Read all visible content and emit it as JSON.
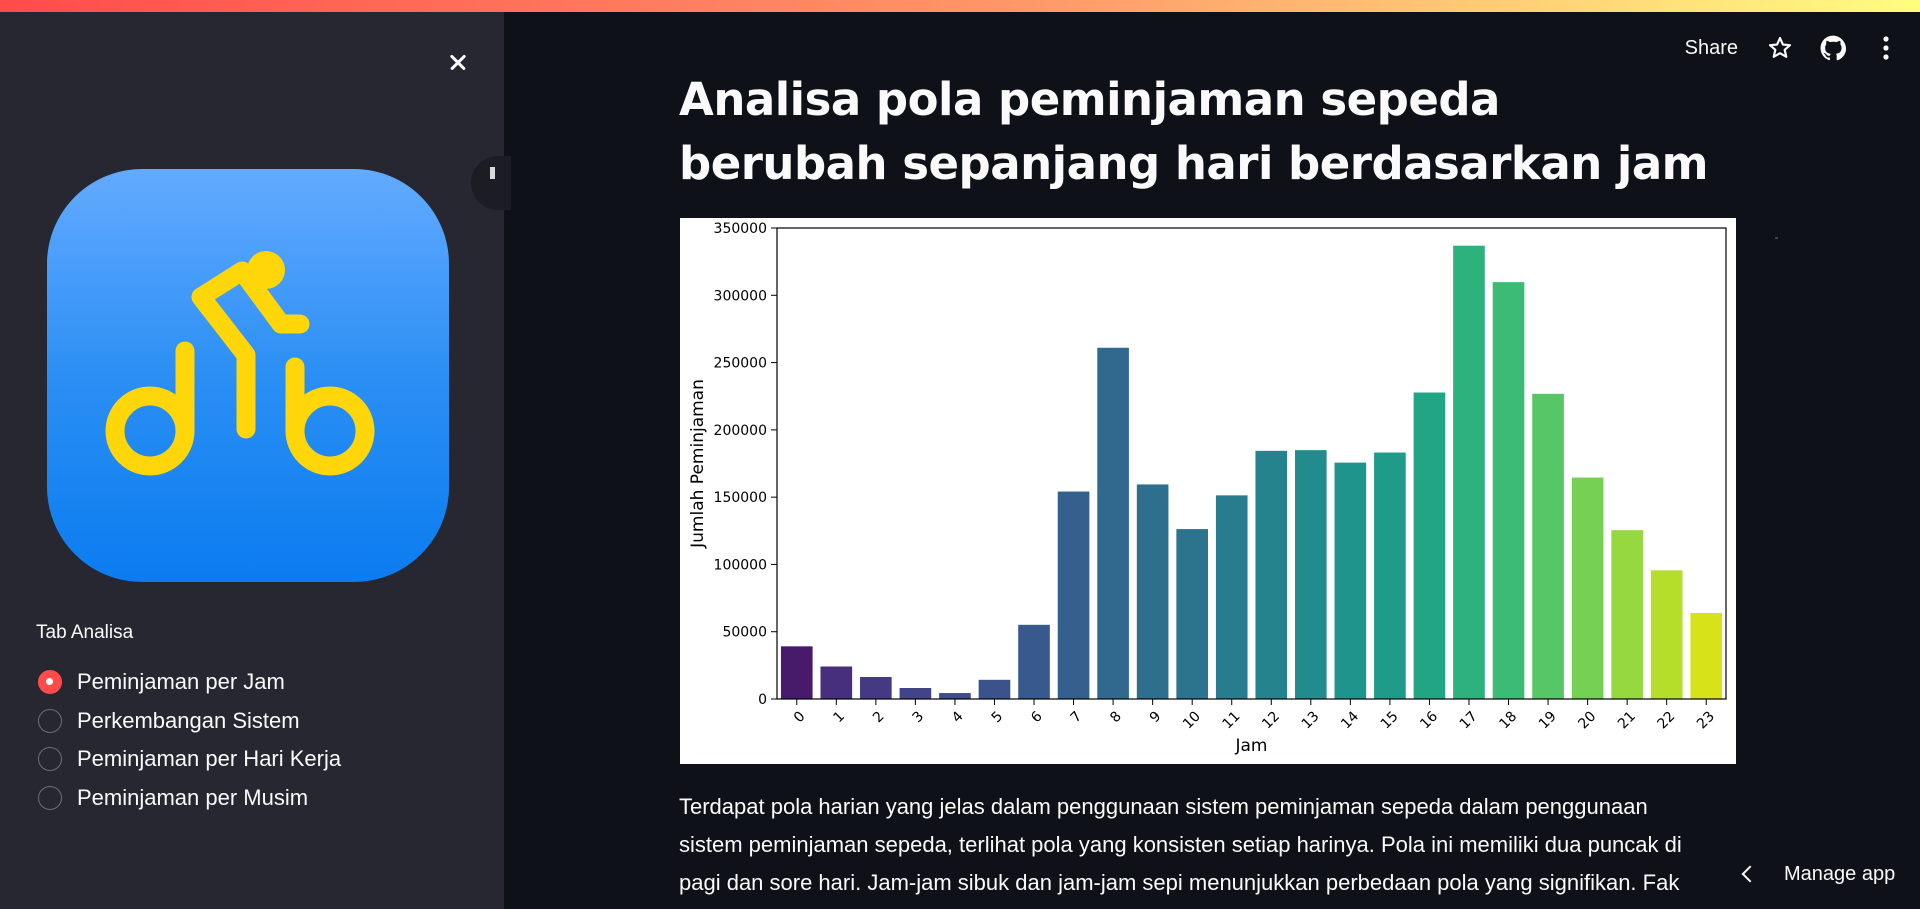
{
  "sidebar": {
    "close_icon": "close-icon",
    "logo_icon": "bicycle-icon",
    "tab_label": "Tab Analisa",
    "options": [
      {
        "label": "Peminjaman per Jam",
        "checked": true
      },
      {
        "label": "Perkembangan Sistem",
        "checked": false
      },
      {
        "label": "Peminjaman per Hari Kerja",
        "checked": false
      },
      {
        "label": "Peminjaman per Musim",
        "checked": false
      }
    ]
  },
  "header": {
    "share_label": "Share",
    "icons": [
      "star-icon",
      "github-icon",
      "more-vert-icon"
    ]
  },
  "main": {
    "title": "Analisa pola peminjaman sepeda berubah sepanjang hari berdasarkan jam",
    "description": "Terdapat pola harian yang jelas dalam penggunaan sistem peminjaman sepeda dalam penggunaan sistem peminjaman sepeda, terlihat pola yang konsisten setiap harinya. Pola ini memiliki dua puncak di pagi dan sore hari. Jam-jam sibuk dan jam-jam sepi menunjukkan perbedaan pola yang signifikan. Fak"
  },
  "footer": {
    "manage_label": "Manage app"
  },
  "colors": {
    "accent": "#ff4b4b",
    "sidebar_bg": "#262730",
    "main_bg": "#0e1117",
    "logo_top": "#63aaff",
    "logo_bottom": "#0b7cf0",
    "logo_glyph": "#ffd60a"
  },
  "chart_data": {
    "type": "bar",
    "palette": "viridis",
    "categories": [
      "0",
      "1",
      "2",
      "3",
      "4",
      "5",
      "6",
      "7",
      "8",
      "9",
      "10",
      "11",
      "12",
      "13",
      "14",
      "15",
      "16",
      "17",
      "18",
      "19",
      "20",
      "21",
      "22",
      "23"
    ],
    "values": [
      39130,
      24164,
      16352,
      8174,
      4428,
      14261,
      55132,
      154171,
      261001,
      159438,
      126257,
      151320,
      184414,
      184919,
      175652,
      183149,
      227748,
      336860,
      309772,
      226789,
      164550,
      125445,
      95612,
      63941
    ],
    "xlabel": "Jam",
    "ylabel": "Jumlah Peminjaman",
    "ylim": [
      0,
      350000
    ],
    "yticks": [
      "0",
      "50000",
      "100000",
      "150000",
      "200000",
      "250000",
      "300000",
      "350000"
    ],
    "ytick_values": [
      0,
      50000,
      100000,
      150000,
      200000,
      250000,
      300000,
      350000
    ],
    "bar_colors": [
      "#481a6c",
      "#472f7d",
      "#443a83",
      "#414487",
      "#3e4c8a",
      "#3b528b",
      "#38598c",
      "#35608d",
      "#31688e",
      "#2e6f8e",
      "#2c738e",
      "#287c8e",
      "#25838e",
      "#228b8d",
      "#1f948c",
      "#1e9c89",
      "#21a585",
      "#2db27d",
      "#3bbb75",
      "#56c667",
      "#75d054",
      "#95d840",
      "#b5de2b",
      "#d8e219"
    ]
  }
}
